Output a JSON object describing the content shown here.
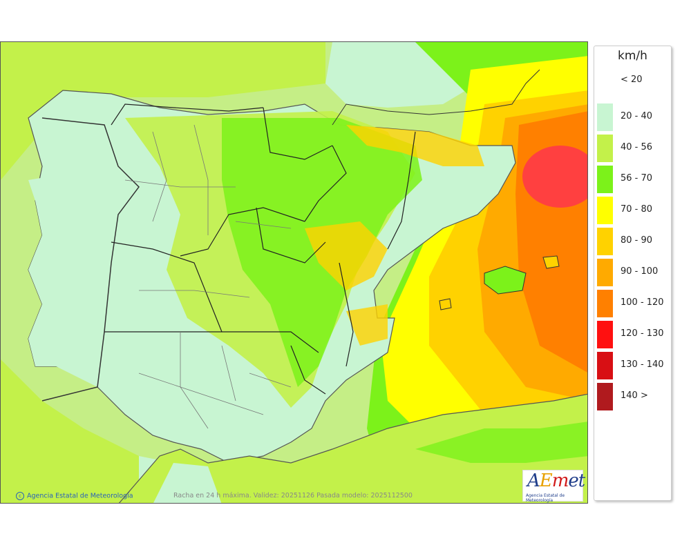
{
  "map": {
    "credit": "Agencia Estatal de Meteorología",
    "note": "Racha en 24 h máxima. Validez: 20251126 Pasada modelo: 2025112500",
    "logo_text": "AEmet",
    "logo_sub": "Agencia Estatal de Meteorología"
  },
  "legend": {
    "unit": "km/h",
    "items": [
      {
        "label": "< 20",
        "color": null
      },
      {
        "label": "20 - 40",
        "color": "#c8f5d2"
      },
      {
        "label": "40 - 56",
        "color": "#c3f14a"
      },
      {
        "label": "56 - 70",
        "color": "#7cf21a"
      },
      {
        "label": "70 - 80",
        "color": "#ffff00"
      },
      {
        "label": "80 - 90",
        "color": "#ffd200"
      },
      {
        "label": "90 - 100",
        "color": "#ffaa00"
      },
      {
        "label": "100 - 120",
        "color": "#ff8000"
      },
      {
        "label": "120 - 130",
        "color": "#ff1010"
      },
      {
        "label": "130 - 140",
        "color": "#d80f14"
      },
      {
        "label": "140 >",
        "color": "#b01a1e"
      }
    ]
  }
}
